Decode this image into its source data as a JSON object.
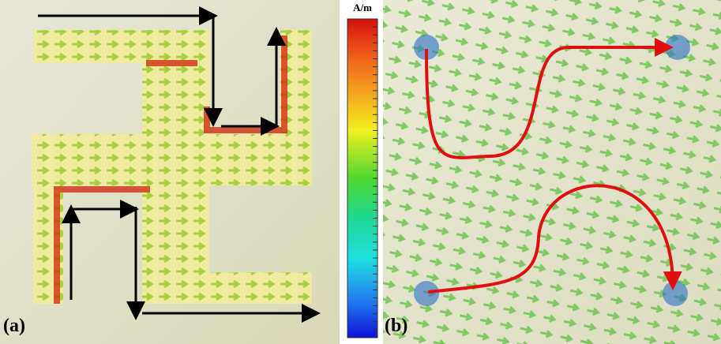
{
  "colorbar": {
    "unit": "A/m"
  },
  "panels": [
    {
      "label": "(a)"
    },
    {
      "label": "(b)"
    }
  ]
}
